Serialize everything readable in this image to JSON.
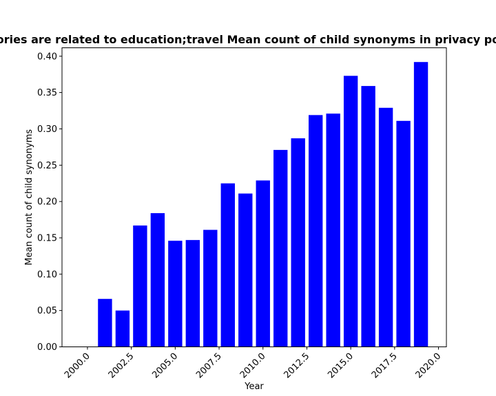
{
  "chart_data": {
    "type": "bar",
    "title": "ories are related to education;travel Mean count of child synonyms in privacy po",
    "xlabel": "Year",
    "ylabel": "Mean count of child synonyms",
    "x": [
      2001,
      2002,
      2003,
      2004,
      2005,
      2006,
      2007,
      2008,
      2009,
      2010,
      2011,
      2012,
      2013,
      2014,
      2015,
      2016,
      2017,
      2018,
      2019
    ],
    "values": [
      0.066,
      0.05,
      0.167,
      0.184,
      0.146,
      0.147,
      0.161,
      0.225,
      0.211,
      0.229,
      0.271,
      0.287,
      0.319,
      0.321,
      0.373,
      0.359,
      0.329,
      0.311,
      0.392
    ],
    "xlim": [
      1998.55,
      2020.45
    ],
    "ylim": [
      0,
      0.4116
    ],
    "xticks": [
      2000.0,
      2002.5,
      2005.0,
      2007.5,
      2010.0,
      2012.5,
      2015.0,
      2017.5,
      2020.0
    ],
    "xtick_labels": [
      "2000.0",
      "2002.5",
      "2005.0",
      "2007.5",
      "2010.0",
      "2012.5",
      "2015.0",
      "2017.5",
      "2020.0"
    ],
    "yticks": [
      0.0,
      0.05,
      0.1,
      0.15,
      0.2,
      0.25,
      0.3,
      0.35,
      0.4
    ],
    "ytick_labels": [
      "0.00",
      "0.05",
      "0.10",
      "0.15",
      "0.20",
      "0.25",
      "0.30",
      "0.35",
      "0.40"
    ],
    "bar_color": "#0000ff",
    "grid": false
  }
}
